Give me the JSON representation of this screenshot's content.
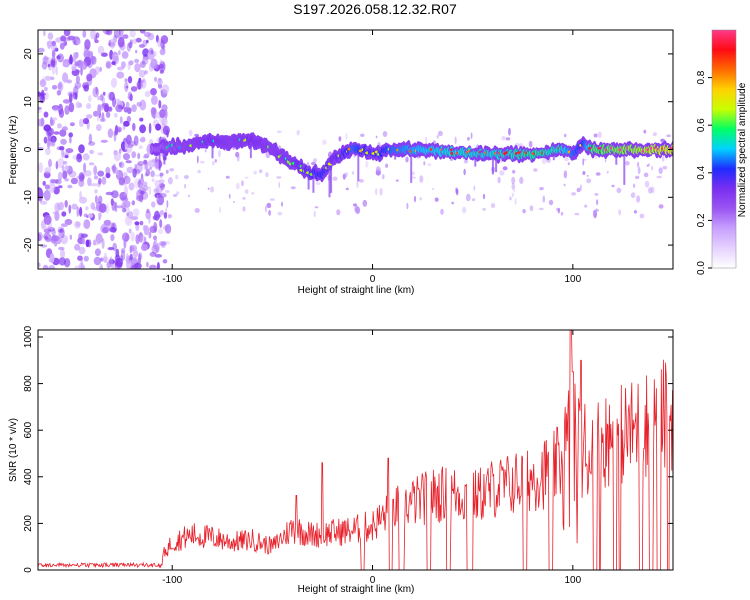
{
  "title": "S197.2026.058.12.32.R07",
  "chart_data": [
    {
      "type": "heatmap",
      "xlabel": "Height of straight line (km)",
      "ylabel": "Frequency (Hz)",
      "xlim": [
        -167,
        150
      ],
      "ylim": [
        -25,
        25
      ],
      "xticks": [
        -100,
        0,
        100
      ],
      "yticks": [
        -20,
        -10,
        0,
        10,
        20
      ],
      "colorbar": {
        "label": "Normalized spectral amplitude",
        "range": [
          0,
          1
        ],
        "ticks": [
          "0.0",
          "0.2",
          "0.4",
          "0.6",
          "0.8"
        ],
        "tick_values": [
          0,
          0.2,
          0.4,
          0.6,
          0.8
        ],
        "colors": [
          "#ffffff",
          "#e6d2ff",
          "#c8a0ff",
          "#9a55f2",
          "#7a2ef0",
          "#1f2bff",
          "#00d2ff",
          "#00ff64",
          "#c8ff00",
          "#ffd200",
          "#ff6a00",
          "#ff0a14",
          "#ff3a8a"
        ]
      },
      "ridge": {
        "x": [
          -110,
          -100,
          -90,
          -80,
          -70,
          -60,
          -50,
          -40,
          -30,
          -25,
          -20,
          -15,
          -10,
          -5,
          0,
          10,
          20,
          40,
          60,
          80,
          95,
          100,
          105,
          110,
          130,
          150
        ],
        "freq": [
          0,
          0.5,
          1,
          2,
          1.5,
          2,
          0,
          -3,
          -5,
          -5,
          -2,
          -1,
          0,
          0,
          -1,
          0,
          0,
          -0.5,
          -1,
          -1,
          0,
          -1,
          1,
          0,
          0,
          0
        ],
        "amplitude": [
          0.3,
          0.35,
          0.4,
          0.45,
          0.4,
          0.45,
          0.4,
          0.45,
          0.5,
          0.55,
          0.45,
          0.5,
          0.6,
          0.55,
          0.5,
          0.6,
          0.65,
          0.7,
          0.7,
          0.75,
          0.7,
          0.6,
          0.55,
          0.8,
          0.85,
          0.9
        ]
      },
      "noise_region_x": [
        -167,
        -110
      ]
    },
    {
      "type": "line",
      "xlabel": "Height of straight line (km)",
      "ylabel": "SNR (10 * v/v)",
      "xlim": [
        -167,
        150
      ],
      "ylim": [
        0,
        1030
      ],
      "xticks": [
        -100,
        0,
        100
      ],
      "yticks": [
        0,
        200,
        400,
        600,
        800,
        1000
      ],
      "color": "#e8202a",
      "baseline": {
        "x": [
          -167,
          -110,
          -105,
          -100,
          -90,
          -80,
          -70,
          -60,
          -50,
          -40,
          -30,
          -20,
          -10,
          0,
          10,
          20,
          30,
          40,
          50,
          60,
          70,
          80,
          90,
          95,
          100,
          105,
          110,
          120,
          130,
          140,
          150
        ],
        "y": [
          20,
          25,
          60,
          120,
          150,
          140,
          120,
          130,
          100,
          180,
          150,
          160,
          170,
          190,
          260,
          290,
          320,
          330,
          310,
          350,
          370,
          400,
          430,
          470,
          480,
          420,
          540,
          570,
          600,
          640,
          680
        ]
      },
      "spikes": [
        {
          "x": -38,
          "y": 320
        },
        {
          "x": -25,
          "y": 460
        },
        {
          "x": 8,
          "y": 480
        },
        {
          "x": 99,
          "y": 1030
        },
        {
          "x": 100,
          "y": 850
        },
        {
          "x": 104,
          "y": 900
        },
        {
          "x": 142,
          "y": 780
        }
      ],
      "dropouts": [
        {
          "x1": -6,
          "x2": -4
        },
        {
          "x1": 8,
          "x2": 10
        },
        {
          "x1": 13,
          "x2": 16
        },
        {
          "x1": 27,
          "x2": 29
        },
        {
          "x1": 37,
          "x2": 39
        },
        {
          "x1": 47,
          "x2": 50
        },
        {
          "x1": 75,
          "x2": 77
        },
        {
          "x1": 88,
          "x2": 90
        },
        {
          "x1": 110,
          "x2": 112
        },
        {
          "x1": 113,
          "x2": 114
        },
        {
          "x1": 120,
          "x2": 122
        },
        {
          "x1": 123,
          "x2": 124
        },
        {
          "x1": 133,
          "x2": 135
        },
        {
          "x1": 138,
          "x2": 140
        },
        {
          "x1": 142,
          "x2": 144
        },
        {
          "x1": 147,
          "x2": 148
        }
      ]
    }
  ]
}
